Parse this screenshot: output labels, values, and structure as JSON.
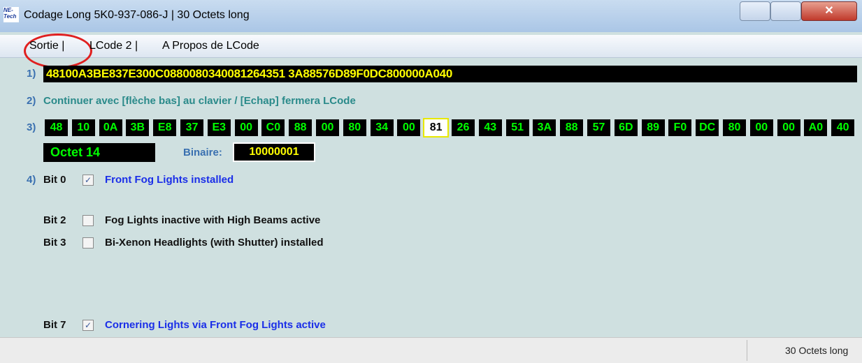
{
  "window": {
    "icon_lines": [
      "NE-",
      "Tech"
    ],
    "title": "Codage Long  5K0-937-086-J | 30 Octets long"
  },
  "menu": [
    "Sortie |",
    "LCode 2 |",
    "A Propos de LCode"
  ],
  "row1": {
    "number": "1)",
    "code": "48100A3BE837E300C0880080340081264351 3A88576D89F0DC800000A040"
  },
  "row2": {
    "number": "2)",
    "text": "Continuer avec [flèche bas] au clavier / [Echap] fermera LCode"
  },
  "row3": {
    "number": "3)",
    "bytes": [
      "48",
      "10",
      "0A",
      "3B",
      "E8",
      "37",
      "E3",
      "00",
      "C0",
      "88",
      "00",
      "80",
      "34",
      "00",
      "81",
      "26",
      "43",
      "51",
      "3A",
      "88",
      "57",
      "6D",
      "89",
      "F0",
      "DC",
      "80",
      "00",
      "00",
      "A0",
      "40"
    ],
    "selected": 14
  },
  "octet": {
    "label": "Octet 14",
    "binary_label": "Binaire:",
    "binary": "10000001"
  },
  "bits": {
    "number": "4)",
    "rows": [
      {
        "label": "Bit 0",
        "checked": true,
        "text": "Front Fog Lights installed"
      },
      {
        "label": "Bit 2",
        "checked": false,
        "text": "Fog Lights inactive with High Beams active"
      },
      {
        "label": "Bit 3",
        "checked": false,
        "text": "Bi-Xenon Headlights (with Shutter) installed"
      },
      {
        "label": "Bit 7",
        "checked": true,
        "text": "Cornering Lights via Front Fog Lights active"
      }
    ]
  },
  "status": "30 Octets long"
}
